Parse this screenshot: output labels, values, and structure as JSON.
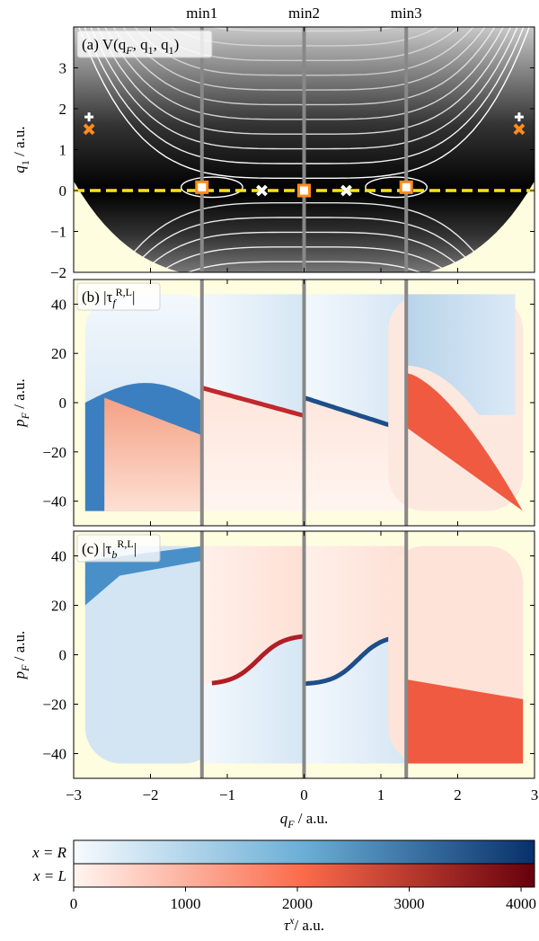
{
  "chart_data": [
    {
      "type": "contour",
      "label": [
        {
          "text": "(a) V(q"
        },
        {
          "text": "F",
          "pos": "sub"
        },
        {
          "text": ", q"
        },
        {
          "text": "1",
          "pos": "sub"
        },
        {
          "text": ", q"
        },
        {
          "text": "1",
          "pos": "sub"
        },
        {
          "text": ")"
        }
      ],
      "ylabel": [
        {
          "text": "q"
        },
        {
          "text": "1",
          "pos": "sub"
        },
        {
          "text": " / a.u."
        }
      ],
      "xlim": [
        -3,
        3
      ],
      "ylim": [
        -2,
        4
      ],
      "yticks": [
        {
          "value": -2,
          "label": "−2"
        },
        {
          "value": -1,
          "label": "−1"
        },
        0,
        1,
        2,
        3
      ],
      "minima": [
        {
          "label": "min1",
          "x": -1.33
        },
        {
          "label": "min2",
          "x": 0
        },
        {
          "label": "min3",
          "x": 1.33
        }
      ],
      "hline": 0,
      "hline_color": "#ffe11a",
      "markers": [
        {
          "marker": "square",
          "color": "#ff8c1a",
          "x": [
            -1.33,
            0,
            1.33
          ],
          "values": [
            0.08,
            0,
            0.08
          ]
        },
        {
          "marker": "x",
          "color": "#ffffff",
          "x": [
            -0.55,
            0.55
          ],
          "values": [
            0,
            0
          ]
        },
        {
          "marker": "x",
          "color": "#ff8c1a",
          "x": [
            -2.8,
            2.8
          ],
          "values": [
            1.5,
            1.5
          ]
        },
        {
          "marker": "plus",
          "color": "#ffffff",
          "x": [
            -2.8,
            2.8
          ],
          "values": [
            1.8,
            1.8
          ]
        }
      ]
    },
    {
      "type": "heatmap",
      "variant": "forward",
      "label": [
        {
          "text": "(b) |τ"
        },
        {
          "text": "f",
          "pos": "sub"
        },
        {
          "text": "R,L",
          "pos": "sup"
        },
        {
          "text": "|"
        }
      ],
      "ylabel": [
        {
          "text": "p"
        },
        {
          "text": "F",
          "pos": "sub"
        },
        {
          "text": " / a.u."
        }
      ],
      "xlim": [
        -3,
        3
      ],
      "ylim": [
        -50,
        50
      ],
      "yticks": [
        {
          "value": -40,
          "label": "−40"
        },
        {
          "value": -20,
          "label": "−20"
        },
        0,
        20,
        40
      ]
    },
    {
      "type": "heatmap",
      "variant": "backward",
      "label": [
        {
          "text": "(c) |τ"
        },
        {
          "text": "b",
          "pos": "sub"
        },
        {
          "text": "R,L",
          "pos": "sup"
        },
        {
          "text": "|"
        }
      ],
      "ylabel": [
        {
          "text": "p"
        },
        {
          "text": "F",
          "pos": "sub"
        },
        {
          "text": " / a.u."
        }
      ],
      "xlabel": [
        {
          "text": "q"
        },
        {
          "text": "F",
          "pos": "sub"
        },
        {
          "text": " / a.u."
        }
      ],
      "xlim": [
        -3,
        3
      ],
      "ylim": [
        -50,
        50
      ],
      "xticks": [
        {
          "value": -3,
          "label": "−3"
        },
        {
          "value": -2,
          "label": "−2"
        },
        {
          "value": -1,
          "label": "−1"
        },
        0,
        1,
        2,
        3
      ],
      "yticks": [
        {
          "value": -40,
          "label": "−40"
        },
        {
          "value": -20,
          "label": "−20"
        },
        0,
        20,
        40
      ]
    },
    {
      "type": "colorbar",
      "rows": [
        "x = R",
        "x = L"
      ],
      "colors": [
        [
          "#f7fbff",
          "#6baed6",
          "#08306b"
        ],
        [
          "#fff5f0",
          "#fb6a4a",
          "#67000d"
        ]
      ],
      "xlim": [
        0,
        4120
      ],
      "xticks": [
        0,
        1000,
        2000,
        3000,
        4000
      ],
      "xlabel": [
        {
          "text": "τ"
        },
        {
          "text": "x",
          "pos": "sup"
        },
        {
          "text": "/ a.u."
        }
      ]
    }
  ]
}
